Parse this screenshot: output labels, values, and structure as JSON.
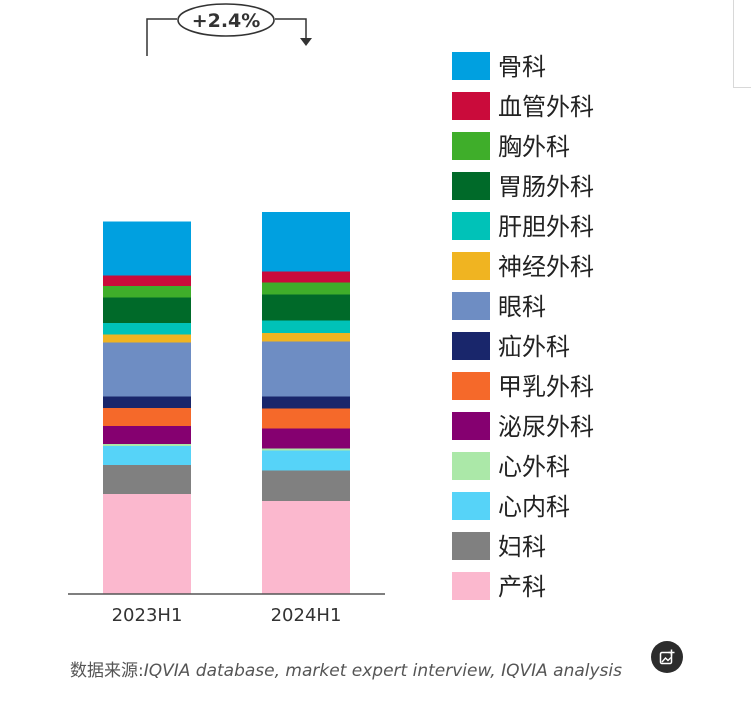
{
  "chart_data": {
    "type": "bar",
    "stacked": true,
    "normalized": true,
    "categories": [
      "2023H1",
      "2024H1"
    ],
    "annotation": "+2.4%",
    "legend_position": "right",
    "series": [
      {
        "name": "产科",
        "color": "#FBB8CE",
        "values": [
          100.0,
          93.0
        ]
      },
      {
        "name": "妇科",
        "color": "#808080",
        "values": [
          29.0,
          30.5
        ]
      },
      {
        "name": "心内科",
        "color": "#56D3F8",
        "values": [
          19.0,
          20.0
        ]
      },
      {
        "name": "心外科",
        "color": "#ABE8A8",
        "values": [
          2.0,
          2.0
        ]
      },
      {
        "name": "泌尿外科",
        "color": "#850070",
        "values": [
          18.0,
          20.0
        ]
      },
      {
        "name": "甲乳外科",
        "color": "#F5692A",
        "values": [
          18.0,
          20.0
        ]
      },
      {
        "name": "疝外科",
        "color": "#19266B",
        "values": [
          11.5,
          12.0
        ]
      },
      {
        "name": "眼科",
        "color": "#6E8DC3",
        "values": [
          54.0,
          55.0
        ]
      },
      {
        "name": "神经外科",
        "color": "#F0B421",
        "values": [
          8.0,
          8.5
        ]
      },
      {
        "name": "肝胆外科",
        "color": "#00C2B8",
        "values": [
          11.5,
          12.5
        ]
      },
      {
        "name": "胃肠外科",
        "color": "#006A29",
        "values": [
          25.5,
          26.0
        ]
      },
      {
        "name": "胸外科",
        "color": "#3FAE2A",
        "values": [
          11.5,
          12.0
        ]
      },
      {
        "name": "血管外科",
        "color": "#CA0B3B",
        "values": [
          10.5,
          11.0
        ]
      },
      {
        "name": "骨科",
        "color": "#00A0E0",
        "values": [
          54.0,
          59.5
        ]
      }
    ]
  },
  "source": {
    "label": "数据来源:",
    "text": "IQVIA database, market expert interview, IQVIA analysis"
  },
  "icons": {
    "add_image": "add-image-icon"
  }
}
